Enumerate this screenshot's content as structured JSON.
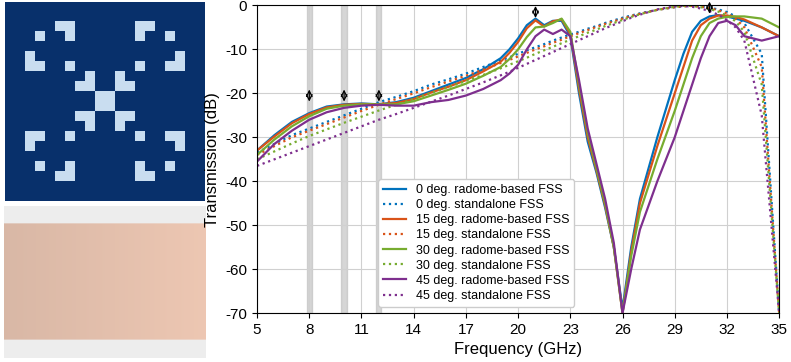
{
  "chart_data": {
    "type": "line",
    "x_label": "Frequency (GHz)",
    "y_label": "Transmission (dB)",
    "xlim": [
      5,
      35
    ],
    "ylim": [
      -70,
      0
    ],
    "xticks": [
      5,
      8,
      11,
      14,
      17,
      20,
      23,
      26,
      29,
      32,
      35
    ],
    "yticks": [
      -70,
      -60,
      -50,
      -40,
      -30,
      -20,
      -10,
      0
    ],
    "grid": true,
    "legend": "lower center",
    "marked_frequencies": [
      8,
      10,
      12,
      21,
      31
    ],
    "marked_levels": [
      -21,
      -21,
      -21,
      -2,
      -1
    ],
    "highlighted_frequencies": [
      8,
      10,
      12
    ],
    "x": [
      5,
      6,
      7,
      8,
      9,
      10,
      11,
      12,
      13,
      14,
      15,
      16,
      17,
      18,
      19,
      19.5,
      20,
      20.5,
      21,
      21.5,
      22,
      22.5,
      23,
      23.5,
      24,
      24.5,
      25,
      25.5,
      26,
      26.5,
      27,
      28,
      29,
      29.5,
      30,
      30.5,
      31,
      31.5,
      32,
      32.5,
      33,
      34,
      35
    ],
    "series": [
      {
        "name": "0 deg. radome-based FSS",
        "color": "#0072BD",
        "line_style": "solid",
        "values": [
          -33,
          -29.5,
          -26.5,
          -24.5,
          -23,
          -22.5,
          -22.3,
          -22.5,
          -22,
          -21,
          -19.5,
          -18,
          -16.5,
          -14.5,
          -12,
          -10,
          -7.5,
          -4.5,
          -3,
          -4.5,
          -3.5,
          -3.5,
          -7,
          -20,
          -31,
          -38,
          -46,
          -55,
          -69,
          -55,
          -44,
          -30,
          -17,
          -11,
          -6,
          -3.5,
          -2.5,
          -2.2,
          -2.5,
          -3,
          -3.5,
          -5,
          -7
        ]
      },
      {
        "name": "0 deg. standalone FSS",
        "color": "#0072BD",
        "line_style": "dotted",
        "values": [
          -33.5,
          -31.5,
          -29.5,
          -28,
          -26.5,
          -25,
          -23.5,
          -22,
          -20.8,
          -19.5,
          -18,
          -16.8,
          -15.5,
          -14,
          -12.5,
          -11.8,
          -11,
          -10.2,
          -9.5,
          -8.8,
          -8,
          -7.3,
          -6.6,
          -6,
          -5.3,
          -4.7,
          -4,
          -3.4,
          -2.8,
          -2.3,
          -1.8,
          -1,
          -0.4,
          -0.2,
          -0.1,
          -0.2,
          -0.5,
          -0.9,
          -1.5,
          -2.5,
          -4,
          -11,
          -70
        ]
      },
      {
        "name": "15 deg. radome-based FSS",
        "color": "#D95319",
        "line_style": "solid",
        "values": [
          -33,
          -29.8,
          -26.8,
          -24.7,
          -23.2,
          -22.6,
          -22.4,
          -22.5,
          -22.2,
          -21.3,
          -19.8,
          -18.5,
          -17,
          -15,
          -12.8,
          -10.8,
          -8.3,
          -5.2,
          -3.4,
          -4.8,
          -3.6,
          -3.2,
          -6.5,
          -19,
          -30,
          -37.5,
          -45.5,
          -55,
          -70,
          -56,
          -45,
          -32,
          -20,
          -14,
          -8,
          -4.5,
          -3,
          -2.3,
          -2.3,
          -2.6,
          -3.2,
          -5,
          -7
        ]
      },
      {
        "name": "15 deg. standalone FSS",
        "color": "#D95319",
        "line_style": "dotted",
        "values": [
          -34,
          -32,
          -30,
          -28.5,
          -27,
          -25.5,
          -24,
          -22.6,
          -21.3,
          -20,
          -18.6,
          -17.3,
          -16,
          -14.6,
          -13.1,
          -12.4,
          -11.6,
          -10.8,
          -10,
          -9.3,
          -8.5,
          -7.8,
          -7,
          -6.3,
          -5.6,
          -4.9,
          -4.2,
          -3.6,
          -3,
          -2.4,
          -1.9,
          -1,
          -0.4,
          -0.2,
          -0.1,
          -0.3,
          -0.6,
          -1.1,
          -1.8,
          -3,
          -5,
          -14,
          -70
        ]
      },
      {
        "name": "30 deg. radome-based FSS",
        "color": "#77AC30",
        "line_style": "solid",
        "values": [
          -34,
          -30.5,
          -27.5,
          -25.2,
          -23.5,
          -22.8,
          -22.5,
          -22.5,
          -22.5,
          -21.8,
          -20.5,
          -19.2,
          -17.8,
          -16,
          -14,
          -12.2,
          -10,
          -7.2,
          -5,
          -4.8,
          -4,
          -3,
          -6,
          -18,
          -29,
          -37,
          -45,
          -55,
          -70,
          -57,
          -47,
          -35,
          -24,
          -18,
          -12,
          -7,
          -4,
          -3,
          -2.6,
          -2.5,
          -2.5,
          -3,
          -5
        ]
      },
      {
        "name": "30 deg. standalone FSS",
        "color": "#77AC30",
        "line_style": "dotted",
        "values": [
          -35,
          -33.2,
          -31.4,
          -29.7,
          -28.2,
          -26.7,
          -25.3,
          -23.9,
          -22.6,
          -21.3,
          -19.9,
          -18.6,
          -17.2,
          -15.8,
          -14.3,
          -13.5,
          -12.7,
          -11.9,
          -11,
          -10.2,
          -9.4,
          -8.6,
          -7.8,
          -7,
          -6.2,
          -5.5,
          -4.7,
          -4,
          -3.3,
          -2.6,
          -2,
          -1,
          -0.3,
          -0.1,
          -0.1,
          -0.4,
          -0.8,
          -1.4,
          -2.3,
          -3.6,
          -6,
          -18,
          -70
        ]
      },
      {
        "name": "45 deg. radome-based FSS",
        "color": "#7E2F8E",
        "line_style": "solid",
        "values": [
          -35.5,
          -31.5,
          -28.5,
          -26,
          -24.3,
          -23.3,
          -22.8,
          -22.6,
          -22.8,
          -22.8,
          -22,
          -21.5,
          -20.5,
          -19,
          -17,
          -15.5,
          -13.5,
          -10,
          -7,
          -5.5,
          -6.5,
          -5.5,
          -7,
          -17,
          -28,
          -36,
          -44,
          -54,
          -70,
          -60,
          -51,
          -40,
          -30,
          -24,
          -18,
          -12,
          -7,
          -4,
          -3.5,
          -4.5,
          -7,
          -8,
          -7
        ]
      },
      {
        "name": "45 deg. standalone FSS",
        "color": "#7E2F8E",
        "line_style": "dotted",
        "values": [
          -36.5,
          -35,
          -33.5,
          -32,
          -30.5,
          -29,
          -27.5,
          -26,
          -24.7,
          -23.3,
          -21.9,
          -20.5,
          -19,
          -17.5,
          -15.9,
          -15.1,
          -14.2,
          -13.3,
          -12.4,
          -11.5,
          -10.6,
          -9.7,
          -8.8,
          -7.9,
          -7,
          -6.1,
          -5.2,
          -4.4,
          -3.6,
          -2.8,
          -2.1,
          -0.9,
          -0.2,
          -0.1,
          -0.3,
          -0.7,
          -1.3,
          -2.1,
          -3.3,
          -5,
          -8,
          -25,
          -70
        ]
      }
    ]
  }
}
